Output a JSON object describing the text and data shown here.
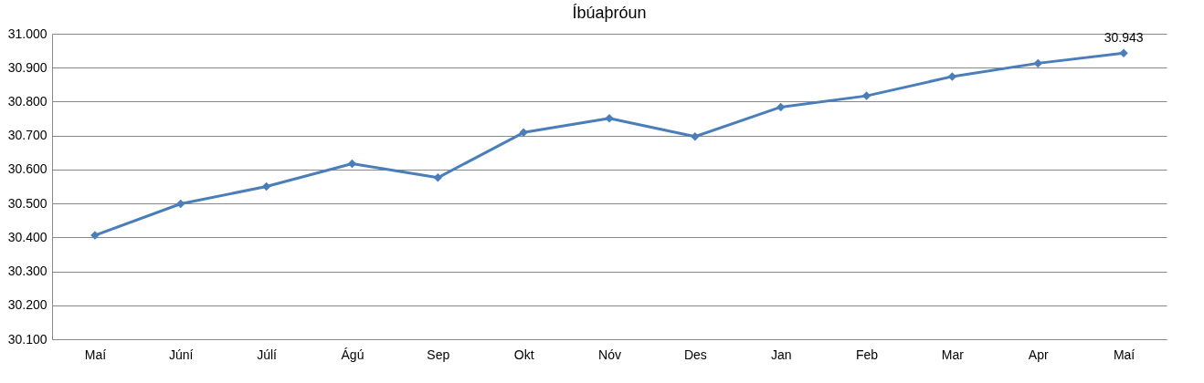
{
  "chart_data": {
    "type": "line",
    "title": "Íbúaþróun",
    "categories": [
      "Maí",
      "Júní",
      "Júlí",
      "Ágú",
      "Sep",
      "Okt",
      "Nóv",
      "Des",
      "Jan",
      "Feb",
      "Mar",
      "Apr",
      "Maí"
    ],
    "series": [
      {
        "color": "#4a7ebb",
        "values": [
          30406,
          30499,
          30550,
          30617,
          30576,
          30709,
          30751,
          30697,
          30784,
          30817,
          30874,
          30913,
          30943
        ],
        "value_labels": [
          null,
          null,
          null,
          null,
          null,
          null,
          null,
          null,
          null,
          null,
          null,
          null,
          "30.943"
        ]
      }
    ],
    "ylim": [
      30100,
      31000
    ],
    "yticks": [
      {
        "value": 30100,
        "label": "30.100"
      },
      {
        "value": 30200,
        "label": "30.200"
      },
      {
        "value": 30300,
        "label": "30.300"
      },
      {
        "value": 30400,
        "label": "30.400"
      },
      {
        "value": 30500,
        "label": "30.500"
      },
      {
        "value": 30600,
        "label": "30.600"
      },
      {
        "value": 30700,
        "label": "30.700"
      },
      {
        "value": 30800,
        "label": "30.800"
      },
      {
        "value": 30900,
        "label": "30.900"
      },
      {
        "value": 31000,
        "label": "31.000"
      }
    ],
    "grid": "y",
    "marker": "diamond",
    "line_style": "solid"
  }
}
